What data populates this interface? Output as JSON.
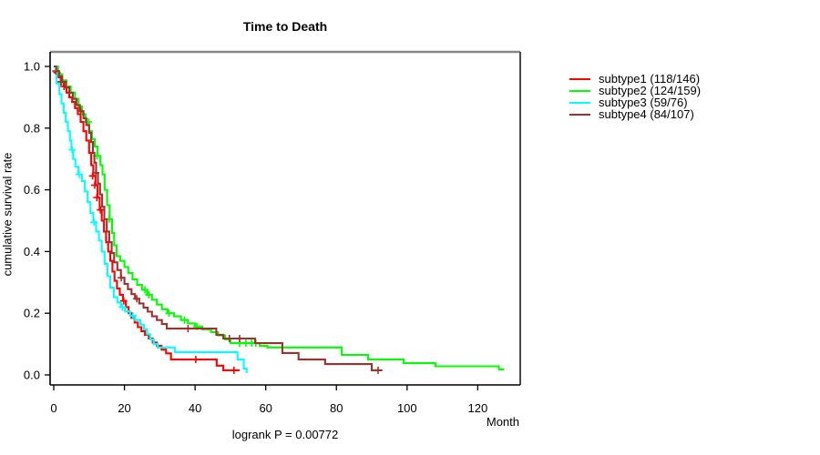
{
  "title": "Time to Death",
  "footnote": "logrank P = 0.00772",
  "axes": {
    "x": {
      "label": "Month",
      "ticks": [
        0,
        20,
        40,
        60,
        80,
        100,
        120
      ]
    },
    "y": {
      "label": "cumulative survival rate",
      "ticks": [
        0.0,
        0.2,
        0.4,
        0.6,
        0.8,
        1.0
      ]
    }
  },
  "legend": {
    "items": [
      {
        "label": "subtype1 (118/146)",
        "color": "#FF0000"
      },
      {
        "label": "subtype2 (124/159)",
        "color": "#00FF00"
      },
      {
        "label": "subtype3 (59/76)",
        "color": "#00FFFF"
      },
      {
        "label": "subtype4 (84/107)",
        "color": "#A03030"
      }
    ]
  },
  "chart_data": {
    "type": "line",
    "subtype": "kaplan-meier-step",
    "title": "Time to Death",
    "xlabel": "Month",
    "ylabel": "cumulative survival rate",
    "xlim": [
      0,
      132
    ],
    "ylim": [
      0,
      1
    ],
    "x_ticks": [
      0,
      20,
      40,
      60,
      80,
      100,
      120
    ],
    "y_ticks": [
      0.0,
      0.2,
      0.4,
      0.6,
      0.8,
      1.0
    ],
    "grid": false,
    "legend_position": "right-outside",
    "annotation": "logrank P = 0.00772",
    "series": [
      {
        "name": "subtype1",
        "events": "118/146",
        "color": "#FF0000",
        "steps": [
          [
            0,
            1.0
          ],
          [
            0.7,
            0.98
          ],
          [
            1.4,
            0.965
          ],
          [
            2.1,
            0.95
          ],
          [
            2.8,
            0.935
          ],
          [
            3.6,
            0.915
          ],
          [
            4.4,
            0.9
          ],
          [
            5.2,
            0.885
          ],
          [
            6,
            0.865
          ],
          [
            6.8,
            0.845
          ],
          [
            7.6,
            0.82
          ],
          [
            8.4,
            0.79
          ],
          [
            9.2,
            0.76
          ],
          [
            10,
            0.72
          ],
          [
            10.6,
            0.68
          ],
          [
            11.2,
            0.645
          ],
          [
            11.8,
            0.615
          ],
          [
            12.4,
            0.575
          ],
          [
            13,
            0.535
          ],
          [
            13.6,
            0.5
          ],
          [
            14.2,
            0.465
          ],
          [
            14.8,
            0.43
          ],
          [
            15.4,
            0.4
          ],
          [
            16,
            0.37
          ],
          [
            16.6,
            0.335
          ],
          [
            17.2,
            0.305
          ],
          [
            17.9,
            0.28
          ],
          [
            18.7,
            0.26
          ],
          [
            19.6,
            0.24
          ],
          [
            20.4,
            0.22
          ],
          [
            21.2,
            0.2
          ],
          [
            22,
            0.185
          ],
          [
            22.9,
            0.17
          ],
          [
            23.8,
            0.155
          ],
          [
            24.8,
            0.142
          ],
          [
            25.8,
            0.13
          ],
          [
            26.9,
            0.118
          ],
          [
            28,
            0.105
          ],
          [
            29.2,
            0.094
          ],
          [
            30.5,
            0.082
          ],
          [
            31.8,
            0.07
          ],
          [
            33.2,
            0.05
          ],
          [
            46.1,
            0.03
          ],
          [
            48,
            0.015
          ],
          [
            52.6,
            0.015
          ]
        ],
        "censors": [
          [
            0.9,
            0.98
          ],
          [
            1.9,
            0.95
          ],
          [
            2.9,
            0.935
          ],
          [
            11,
            0.645
          ],
          [
            11.6,
            0.615
          ],
          [
            12.2,
            0.575
          ],
          [
            13.2,
            0.535
          ],
          [
            19.8,
            0.24
          ],
          [
            40.2,
            0.05
          ],
          [
            51,
            0.015
          ]
        ]
      },
      {
        "name": "subtype2",
        "events": "124/159",
        "color": "#00FF00",
        "steps": [
          [
            0,
            1.0
          ],
          [
            1.2,
            0.975
          ],
          [
            2.4,
            0.955
          ],
          [
            3.6,
            0.935
          ],
          [
            4.8,
            0.915
          ],
          [
            6,
            0.895
          ],
          [
            7,
            0.87
          ],
          [
            8,
            0.845
          ],
          [
            9,
            0.82
          ],
          [
            10,
            0.79
          ],
          [
            10.8,
            0.765
          ],
          [
            11.6,
            0.74
          ],
          [
            12.4,
            0.71
          ],
          [
            13.2,
            0.68
          ],
          [
            13.8,
            0.65
          ],
          [
            14.4,
            0.6
          ],
          [
            15.1,
            0.55
          ],
          [
            15.8,
            0.505
          ],
          [
            16.5,
            0.46
          ],
          [
            17.1,
            0.42
          ],
          [
            17.8,
            0.385
          ],
          [
            18.8,
            0.37
          ],
          [
            20,
            0.35
          ],
          [
            21.1,
            0.33
          ],
          [
            22.3,
            0.31
          ],
          [
            23.6,
            0.292
          ],
          [
            25,
            0.276
          ],
          [
            26.4,
            0.26
          ],
          [
            27.8,
            0.244
          ],
          [
            29.2,
            0.228
          ],
          [
            30.6,
            0.213
          ],
          [
            32.2,
            0.2
          ],
          [
            34,
            0.19
          ],
          [
            36,
            0.178
          ],
          [
            38,
            0.167
          ],
          [
            40,
            0.157
          ],
          [
            42,
            0.148
          ],
          [
            44.5,
            0.139
          ],
          [
            46.5,
            0.128
          ],
          [
            48.5,
            0.115
          ],
          [
            50,
            0.103
          ],
          [
            58.3,
            0.094
          ],
          [
            60.5,
            0.089
          ],
          [
            81.5,
            0.065
          ],
          [
            89,
            0.05
          ],
          [
            99,
            0.038
          ],
          [
            108,
            0.028
          ],
          [
            126,
            0.018
          ],
          [
            127.5,
            0.018
          ]
        ],
        "censors": [
          [
            9.8,
            0.82
          ],
          [
            12.2,
            0.71
          ],
          [
            15.7,
            0.505
          ],
          [
            25.8,
            0.276
          ],
          [
            26.9,
            0.26
          ],
          [
            32.6,
            0.2
          ],
          [
            37,
            0.178
          ],
          [
            40.5,
            0.157
          ],
          [
            52.6,
            0.103
          ],
          [
            54.4,
            0.103
          ],
          [
            56,
            0.103
          ],
          [
            57.2,
            0.103
          ]
        ]
      },
      {
        "name": "subtype3",
        "events": "59/76",
        "color": "#00FFFF",
        "steps": [
          [
            0,
            1.0
          ],
          [
            0.8,
            0.945
          ],
          [
            1.6,
            0.91
          ],
          [
            2.2,
            0.88
          ],
          [
            2.8,
            0.85
          ],
          [
            3.4,
            0.82
          ],
          [
            4,
            0.79
          ],
          [
            4.6,
            0.76
          ],
          [
            5,
            0.73
          ],
          [
            5.5,
            0.7
          ],
          [
            6.1,
            0.675
          ],
          [
            7,
            0.65
          ],
          [
            8,
            0.628
          ],
          [
            8.8,
            0.595
          ],
          [
            9.6,
            0.56
          ],
          [
            10.4,
            0.525
          ],
          [
            11.2,
            0.495
          ],
          [
            12,
            0.465
          ],
          [
            12.8,
            0.435
          ],
          [
            13.6,
            0.4
          ],
          [
            14.4,
            0.36
          ],
          [
            15.2,
            0.32
          ],
          [
            16,
            0.283
          ],
          [
            17,
            0.252
          ],
          [
            18,
            0.235
          ],
          [
            19,
            0.22
          ],
          [
            20.2,
            0.206
          ],
          [
            21.6,
            0.192
          ],
          [
            23,
            0.178
          ],
          [
            24.5,
            0.163
          ],
          [
            25.5,
            0.148
          ],
          [
            26.4,
            0.132
          ],
          [
            27.3,
            0.115
          ],
          [
            28.3,
            0.1
          ],
          [
            29.4,
            0.089
          ],
          [
            34.3,
            0.074
          ],
          [
            52,
            0.05
          ],
          [
            53.8,
            0.021
          ],
          [
            54.6,
            0.006
          ]
        ],
        "censors": [
          [
            5.2,
            0.73
          ],
          [
            7.2,
            0.65
          ],
          [
            11.4,
            0.495
          ],
          [
            19.4,
            0.22
          ],
          [
            22.4,
            0.192
          ]
        ]
      },
      {
        "name": "subtype4",
        "events": "84/107",
        "color": "#A03030",
        "steps": [
          [
            0,
            1.0
          ],
          [
            0.7,
            0.985
          ],
          [
            1.5,
            0.968
          ],
          [
            2.4,
            0.95
          ],
          [
            3.4,
            0.932
          ],
          [
            4.4,
            0.915
          ],
          [
            5.4,
            0.895
          ],
          [
            6.4,
            0.875
          ],
          [
            7.4,
            0.855
          ],
          [
            8.4,
            0.832
          ],
          [
            9.2,
            0.81
          ],
          [
            10,
            0.785
          ],
          [
            10.6,
            0.755
          ],
          [
            11.1,
            0.72
          ],
          [
            11.5,
            0.688
          ],
          [
            12,
            0.655
          ],
          [
            12.5,
            0.62
          ],
          [
            13.1,
            0.585
          ],
          [
            13.7,
            0.545
          ],
          [
            14.3,
            0.505
          ],
          [
            15,
            0.465
          ],
          [
            15.7,
            0.43
          ],
          [
            16.4,
            0.395
          ],
          [
            17.1,
            0.365
          ],
          [
            18,
            0.34
          ],
          [
            19,
            0.315
          ],
          [
            20,
            0.295
          ],
          [
            21,
            0.278
          ],
          [
            22,
            0.262
          ],
          [
            23,
            0.247
          ],
          [
            24.2,
            0.232
          ],
          [
            25.4,
            0.218
          ],
          [
            26.6,
            0.205
          ],
          [
            27.8,
            0.19
          ],
          [
            29.2,
            0.178
          ],
          [
            30.6,
            0.165
          ],
          [
            32,
            0.15
          ],
          [
            46,
            0.13
          ],
          [
            48,
            0.118
          ],
          [
            57,
            0.103
          ],
          [
            64.7,
            0.071
          ],
          [
            69.3,
            0.05
          ],
          [
            76.8,
            0.035
          ],
          [
            90,
            0.015
          ],
          [
            93,
            0.015
          ]
        ],
        "censors": [
          [
            0.6,
            0.985
          ],
          [
            2.1,
            0.95
          ],
          [
            7.6,
            0.855
          ],
          [
            11.9,
            0.655
          ],
          [
            19.1,
            0.315
          ],
          [
            23.5,
            0.247
          ],
          [
            38,
            0.15
          ],
          [
            49.7,
            0.118
          ],
          [
            52.6,
            0.118
          ],
          [
            91.8,
            0.015
          ]
        ]
      }
    ]
  }
}
